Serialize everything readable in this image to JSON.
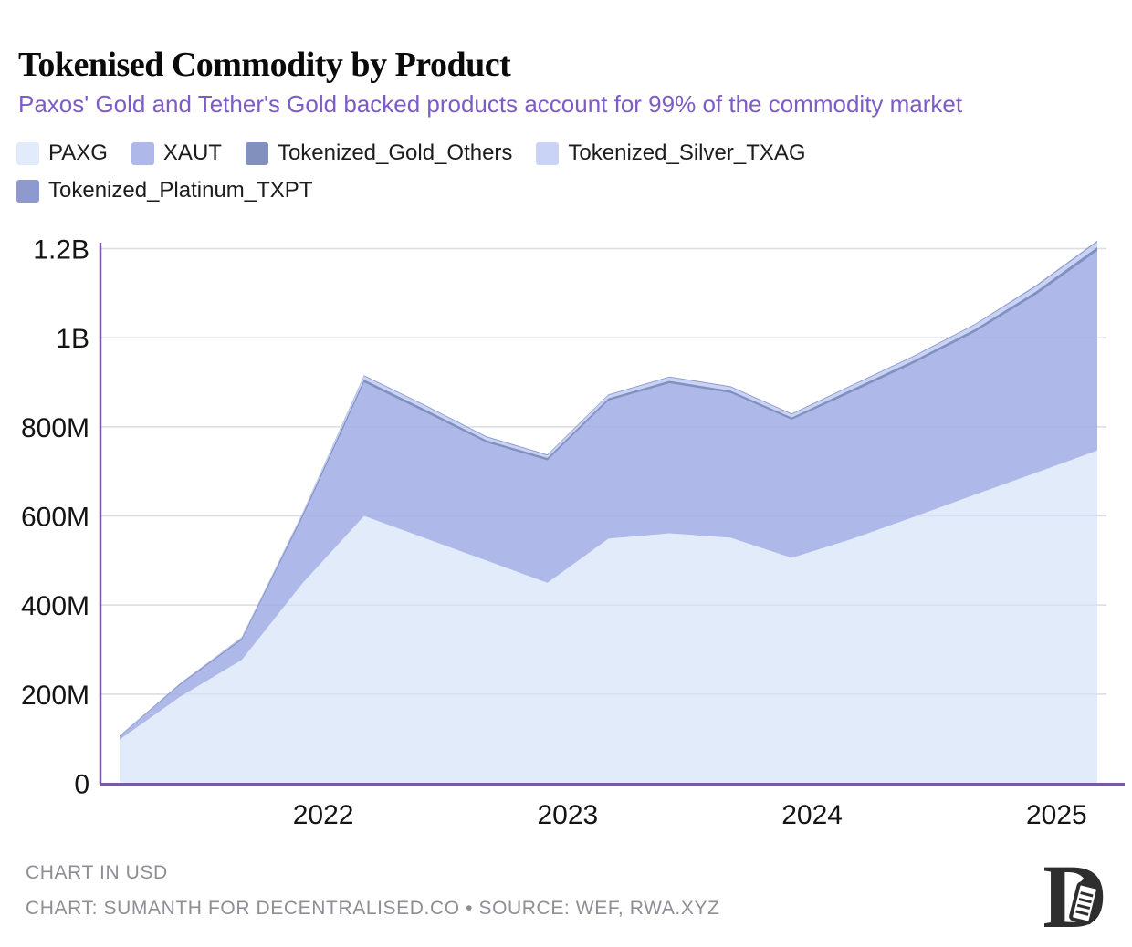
{
  "title": "Tokenised Commodity by Product",
  "subtitle": "Paxos' Gold and Tether's Gold backed products account for 99% of the commodity market",
  "colors": {
    "subtitle": "#7d5cc6",
    "axis": "#7a58a8",
    "grid": "#e8e8ed",
    "tick_text": "#141414",
    "footer_text": "#8e8e96",
    "logo": "#2e2e2e",
    "background": "#ffffff"
  },
  "legend": [
    {
      "label": "PAXG",
      "color": "#e2ebfa"
    },
    {
      "label": "XAUT",
      "color": "#aeb9e9"
    },
    {
      "label": "Tokenized_Gold_Others",
      "color": "#8190bd"
    },
    {
      "label": "Tokenized_Silver_TXAG",
      "color": "#c9d3f6"
    },
    {
      "label": "Tokenized_Platinum_TXPT",
      "color": "#8e9acd"
    }
  ],
  "chart_data": {
    "type": "area",
    "stacked": true,
    "unit": "USD (millions)",
    "title": "Tokenised Commodity by Product",
    "x": [
      "2021-03",
      "2021-06",
      "2021-09",
      "2021-12",
      "2022-03",
      "2022-06",
      "2022-09",
      "2022-12",
      "2023-03",
      "2023-06",
      "2023-09",
      "2023-12",
      "2024-03",
      "2024-06",
      "2024-09",
      "2024-12",
      "2025-03"
    ],
    "series": [
      {
        "name": "PAXG",
        "color": "#e2ebfa",
        "values": [
          98,
          195,
          277,
          450,
          600,
          550,
          500,
          450,
          549,
          561,
          551,
          506,
          549,
          598,
          648,
          697,
          747
        ]
      },
      {
        "name": "XAUT",
        "color": "#aeb9e9",
        "values": [
          7,
          27,
          45,
          149,
          300,
          283,
          265,
          275,
          310,
          337,
          325,
          310,
          330,
          345,
          365,
          400,
          448
        ]
      },
      {
        "name": "Tokenized_Gold_Others",
        "color": "#8190bd",
        "values": [
          1,
          2,
          3,
          5,
          6,
          6,
          5,
          5,
          5,
          5,
          5,
          5,
          6,
          6,
          6,
          7,
          8
        ]
      },
      {
        "name": "Tokenized_Silver_TXAG",
        "color": "#c9d3f6",
        "values": [
          0.5,
          1,
          2,
          4,
          8,
          8,
          7,
          6,
          7,
          8,
          8,
          7,
          8,
          9,
          10,
          11,
          12
        ]
      },
      {
        "name": "Tokenized_Platinum_TXPT",
        "color": "#8e9acd",
        "values": [
          0.3,
          0.5,
          1,
          1,
          2,
          2,
          2,
          2,
          2,
          2,
          2,
          2,
          2,
          2,
          2,
          3,
          3
        ]
      }
    ],
    "x_tick_labels": [
      "2022",
      "2023",
      "2024",
      "2025"
    ],
    "x_tick_years": [
      2022,
      2023,
      2024,
      2025
    ],
    "y_tick_labels": [
      "0",
      "200M",
      "400M",
      "600M",
      "800M",
      "1B",
      "1.2B"
    ],
    "y_ticks_millions": [
      0,
      200,
      400,
      600,
      800,
      1000,
      1200
    ],
    "ylim_millions": [
      0,
      1200
    ],
    "grid": true,
    "legend_position": "top"
  },
  "footer": {
    "line1": "CHART IN USD",
    "line2": "CHART: SUMANTH FOR DECENTRALISED.CO • SOURCE: WEF, RWA.XYZ"
  },
  "logo": {
    "letter": "D"
  }
}
